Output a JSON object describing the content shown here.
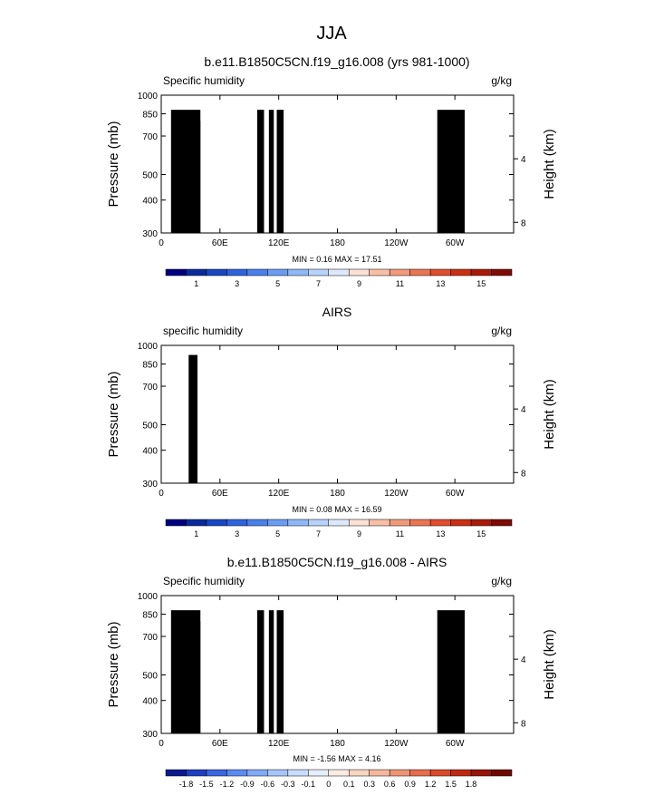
{
  "figure_title": "JJA",
  "colors": {
    "abs_bar": [
      "#000080",
      "#0a2a9c",
      "#1946c2",
      "#2f62dd",
      "#4a80ea",
      "#6a9cf2",
      "#8fb8f7",
      "#b7d3fa",
      "#dde9fb",
      "#fbe1d6",
      "#f8bfa6",
      "#f29b7a",
      "#eb7552",
      "#e14d2d",
      "#c93014",
      "#a81a0a",
      "#7e0b05"
    ],
    "diff_bar": [
      "#0a1a8e",
      "#1e3fc0",
      "#3a66e0",
      "#5b8bef",
      "#80aaf6",
      "#a6c6fa",
      "#c9dcfb",
      "#e6eefb",
      "#fbece3",
      "#f8d4c2",
      "#f5b89d",
      "#ef9474",
      "#e86d4c",
      "#d84a2b",
      "#bd2a14",
      "#96150a",
      "#6e0a04"
    ]
  },
  "chart_data": [
    {
      "type": "heatmap",
      "title": "b.e11.B1850C5CN.f19_g16.008 (yrs 981-1000)",
      "left_label": "Specific humidity",
      "right_label": "g/kg",
      "ylabel": "Pressure (mb)",
      "ylabel_right": "Height (km)",
      "ylim": [
        1000,
        300
      ],
      "y_ticks": [
        "300",
        "400",
        "500",
        "700",
        "850",
        "1000"
      ],
      "y_tick_values": [
        300,
        400,
        500,
        700,
        850,
        1000
      ],
      "right_ticks": [
        "8",
        "4"
      ],
      "right_tick_values": [
        8,
        4
      ],
      "xlim": [
        0,
        360
      ],
      "x_ticks": [
        "0",
        "60E",
        "120E",
        "180",
        "120W",
        "60W"
      ],
      "x_tick_values": [
        0,
        60,
        120,
        180,
        240,
        300
      ],
      "stats": "MIN =  0.16  MAX =  17.51",
      "colorbar_labels": [
        "1",
        "3",
        "5",
        "7",
        "9",
        "11",
        "13",
        "15"
      ],
      "colorbar_values": [
        1,
        3,
        5,
        7,
        9,
        11,
        13,
        15
      ],
      "field": "abs",
      "surface_scale": 1.0,
      "terrain": [
        [
          10,
          40,
          880
        ],
        [
          30,
          40,
          800
        ],
        [
          98,
          105,
          880
        ],
        [
          110,
          115,
          880
        ],
        [
          118,
          125,
          880
        ],
        [
          282,
          310,
          880
        ]
      ]
    },
    {
      "type": "heatmap",
      "title": "AIRS",
      "left_label": "specific humidity",
      "right_label": "g/kg",
      "ylabel": "Pressure (mb)",
      "ylabel_right": "Height (km)",
      "ylim": [
        1000,
        300
      ],
      "y_ticks": [
        "300",
        "400",
        "500",
        "700",
        "850",
        "1000"
      ],
      "y_tick_values": [
        300,
        400,
        500,
        700,
        850,
        1000
      ],
      "right_ticks": [
        "8",
        "4"
      ],
      "right_tick_values": [
        8,
        4
      ],
      "xlim": [
        0,
        360
      ],
      "x_ticks": [
        "0",
        "60E",
        "120E",
        "180",
        "120W",
        "60W"
      ],
      "x_tick_values": [
        0,
        60,
        120,
        180,
        240,
        300
      ],
      "stats": "MIN =  0.08  MAX =  16.59",
      "colorbar_labels": [
        "1",
        "3",
        "5",
        "7",
        "9",
        "11",
        "13",
        "15"
      ],
      "colorbar_values": [
        1,
        3,
        5,
        7,
        9,
        11,
        13,
        15
      ],
      "field": "abs",
      "surface_scale": 0.96,
      "terrain": [
        [
          28,
          37,
          920
        ]
      ]
    },
    {
      "type": "heatmap",
      "title": "b.e11.B1850C5CN.f19_g16.008 - AIRS",
      "left_label": "Specific humidity",
      "right_label": "g/kg",
      "ylabel": "Pressure (mb)",
      "ylabel_right": "Height (km)",
      "ylim": [
        1000,
        300
      ],
      "y_ticks": [
        "300",
        "400",
        "500",
        "700",
        "850",
        "1000"
      ],
      "y_tick_values": [
        300,
        400,
        500,
        700,
        850,
        1000
      ],
      "right_ticks": [
        "8",
        "4"
      ],
      "right_tick_values": [
        8,
        4
      ],
      "xlim": [
        0,
        360
      ],
      "x_ticks": [
        "0",
        "60E",
        "120E",
        "180",
        "120W",
        "60W"
      ],
      "x_tick_values": [
        0,
        60,
        120,
        180,
        240,
        300
      ],
      "stats": "MIN = -1.56  MAX =  4.16",
      "colorbar_labels": [
        "-1.8",
        "-1.5",
        "-1.2",
        "-0.9",
        "-0.6",
        "-0.3",
        "-0.1",
        "0",
        "0.1",
        "0.3",
        "0.6",
        "0.9",
        "1.2",
        "1.5",
        "1.8"
      ],
      "colorbar_values": [
        -1.8,
        -1.5,
        -1.2,
        -0.9,
        -0.6,
        -0.3,
        -0.1,
        0,
        0.1,
        0.3,
        0.6,
        0.9,
        1.2,
        1.5,
        1.8
      ],
      "field": "diff",
      "terrain": [
        [
          10,
          40,
          880
        ],
        [
          30,
          40,
          800
        ],
        [
          98,
          105,
          880
        ],
        [
          110,
          115,
          880
        ],
        [
          118,
          125,
          880
        ],
        [
          282,
          310,
          880
        ]
      ]
    }
  ]
}
